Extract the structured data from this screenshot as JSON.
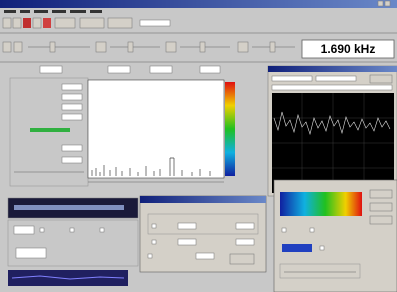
{
  "toolbar": {
    "frequency_display": "1.690 kHz"
  }
}
